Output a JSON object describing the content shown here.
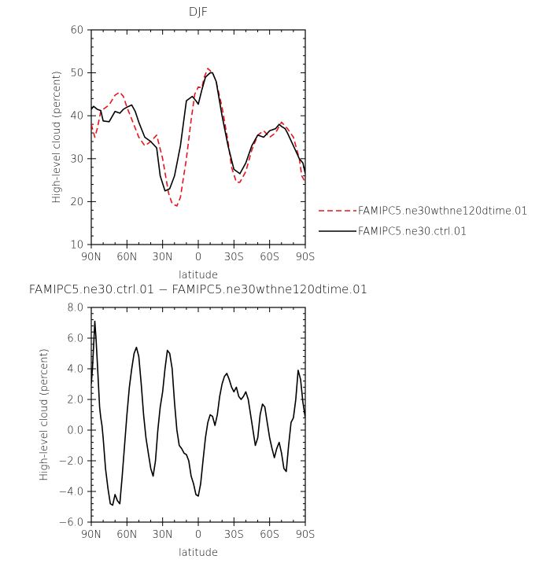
{
  "chart_data": [
    {
      "type": "line",
      "title": "DJF",
      "xlabel": "latitude",
      "ylabel": "High-level cloud (percent)",
      "xlim": [
        90,
        -90
      ],
      "ylim": [
        10,
        60
      ],
      "x_ticks": [
        90,
        60,
        30,
        0,
        -30,
        -60,
        -90
      ],
      "x_tick_labels": [
        "90N",
        "60N",
        "30N",
        "0",
        "30S",
        "60S",
        "90S"
      ],
      "y_ticks": [
        10,
        20,
        30,
        40,
        50,
        60
      ],
      "y_tick_labels": [
        "10",
        "20",
        "30",
        "40",
        "50",
        "60"
      ],
      "legend_position": "right",
      "series": [
        {
          "name": "FAMIPC5.ne30wthne120dtime.01",
          "color": "#e8141c",
          "dash": "dashed",
          "x": [
            90,
            87,
            85,
            82,
            80,
            75,
            70,
            66,
            63,
            60,
            55,
            50,
            45,
            40,
            35,
            30,
            25,
            22,
            18,
            15,
            10,
            6,
            3,
            0,
            -3,
            -5,
            -8,
            -12,
            -15,
            -20,
            -25,
            -28,
            -32,
            -35,
            -40,
            -45,
            -50,
            -55,
            -60,
            -65,
            -70,
            -75,
            -80,
            -85,
            -87,
            -90
          ],
          "values": [
            38,
            35,
            37,
            41,
            41.5,
            42.5,
            44.8,
            45.5,
            44.5,
            42,
            38.5,
            35,
            33,
            34,
            35.5,
            30,
            22,
            19.5,
            19,
            21,
            30,
            39,
            45,
            46.7,
            46.5,
            49,
            51,
            50,
            48,
            42,
            34,
            28,
            24.5,
            24.5,
            27,
            32,
            35.5,
            36.5,
            35,
            36,
            38.5,
            37,
            35,
            30,
            26,
            24.5
          ]
        },
        {
          "name": "FAMIPC5.ne30.ctrl.01",
          "color": "#000000",
          "dash": "solid",
          "x": [
            90,
            88,
            85,
            82,
            80,
            75,
            70,
            66,
            63,
            60,
            56,
            53,
            50,
            45,
            40,
            35,
            32,
            28,
            24,
            20,
            15,
            10,
            5,
            2,
            0,
            -3,
            -6,
            -10,
            -12,
            -15,
            -20,
            -25,
            -30,
            -35,
            -40,
            -45,
            -50,
            -55,
            -60,
            -65,
            -68,
            -70,
            -73,
            -75,
            -80,
            -85,
            -88,
            -90
          ],
          "values": [
            41.5,
            42.2,
            41.5,
            41.2,
            38.8,
            38.6,
            41,
            40.6,
            41.5,
            42,
            42.5,
            41,
            38.5,
            35,
            34,
            32.5,
            26,
            22.5,
            23,
            26,
            33,
            43.5,
            44.5,
            43.5,
            42.7,
            46,
            49,
            50,
            50,
            48,
            40,
            33,
            27.5,
            26.5,
            29,
            33,
            35.5,
            35,
            36.5,
            37,
            38,
            37.5,
            37,
            36,
            33,
            30,
            29,
            26.5
          ]
        }
      ]
    },
    {
      "type": "line",
      "title": "FAMIPC5.ne30.ctrl.01 − FAMIPC5.ne30wthne120dtime.01",
      "xlabel": "latitude",
      "ylabel": "High-level cloud (percent)",
      "xlim": [
        90,
        -90
      ],
      "ylim": [
        -6,
        8
      ],
      "x_ticks": [
        90,
        60,
        30,
        0,
        -30,
        -60,
        -90
      ],
      "x_tick_labels": [
        "90N",
        "60N",
        "30N",
        "0",
        "30S",
        "60S",
        "90S"
      ],
      "y_ticks": [
        -6,
        -4,
        -2,
        0,
        2,
        4,
        6,
        8
      ],
      "y_tick_labels": [
        "−6.0",
        "−4.0",
        "−2.0",
        "0.0",
        "2.0",
        "4.0",
        "6.0",
        "8.0"
      ],
      "series": [
        {
          "name": "",
          "color": "#000000",
          "dash": "solid",
          "x": [
            90,
            89,
            88,
            87,
            86,
            85,
            84,
            83,
            82,
            81,
            80,
            79,
            78,
            76,
            74,
            72,
            70,
            68,
            66,
            64,
            62,
            60,
            58,
            56,
            54,
            52,
            50,
            48,
            46,
            44,
            42,
            40,
            38,
            36,
            34,
            32,
            30,
            28,
            26,
            24,
            22,
            20,
            18,
            16,
            14,
            12,
            10,
            8,
            6,
            4,
            2,
            0,
            -2,
            -4,
            -6,
            -8,
            -10,
            -12,
            -14,
            -16,
            -18,
            -20,
            -22,
            -24,
            -26,
            -28,
            -30,
            -32,
            -34,
            -36,
            -38,
            -40,
            -42,
            -44,
            -46,
            -48,
            -50,
            -52,
            -54,
            -56,
            -58,
            -60,
            -62,
            -64,
            -66,
            -68,
            -70,
            -72,
            -74,
            -76,
            -78,
            -80,
            -82,
            -84,
            -86,
            -88,
            -90
          ],
          "values": [
            3.0,
            4.0,
            5.5,
            7.1,
            6.0,
            4.5,
            3.0,
            1.5,
            0.8,
            0.3,
            -0.5,
            -1.5,
            -2.5,
            -3.8,
            -4.8,
            -4.9,
            -4.2,
            -4.6,
            -4.8,
            -3.0,
            -1.0,
            1.0,
            2.8,
            4.0,
            5.0,
            5.4,
            4.8,
            3.0,
            1.0,
            -0.5,
            -1.5,
            -2.5,
            -3.0,
            -2.0,
            0.0,
            1.5,
            2.5,
            4.0,
            5.2,
            5.0,
            4.0,
            1.8,
            0.0,
            -1.0,
            -1.2,
            -1.5,
            -1.6,
            -2.0,
            -3.0,
            -3.5,
            -4.2,
            -4.3,
            -3.5,
            -2.0,
            -0.5,
            0.5,
            1.0,
            0.9,
            0.3,
            1.0,
            2.2,
            3.0,
            3.5,
            3.7,
            3.3,
            2.8,
            2.5,
            2.8,
            2.2,
            2.0,
            2.2,
            2.5,
            2.0,
            1.0,
            0.0,
            -1.0,
            -0.5,
            1.0,
            1.7,
            1.5,
            0.5,
            -0.5,
            -1.2,
            -1.8,
            -1.2,
            -0.8,
            -1.5,
            -2.5,
            -2.7,
            -1.0,
            0.5,
            0.8,
            2.0,
            3.9,
            3.3,
            1.8,
            0.8
          ]
        }
      ]
    }
  ]
}
